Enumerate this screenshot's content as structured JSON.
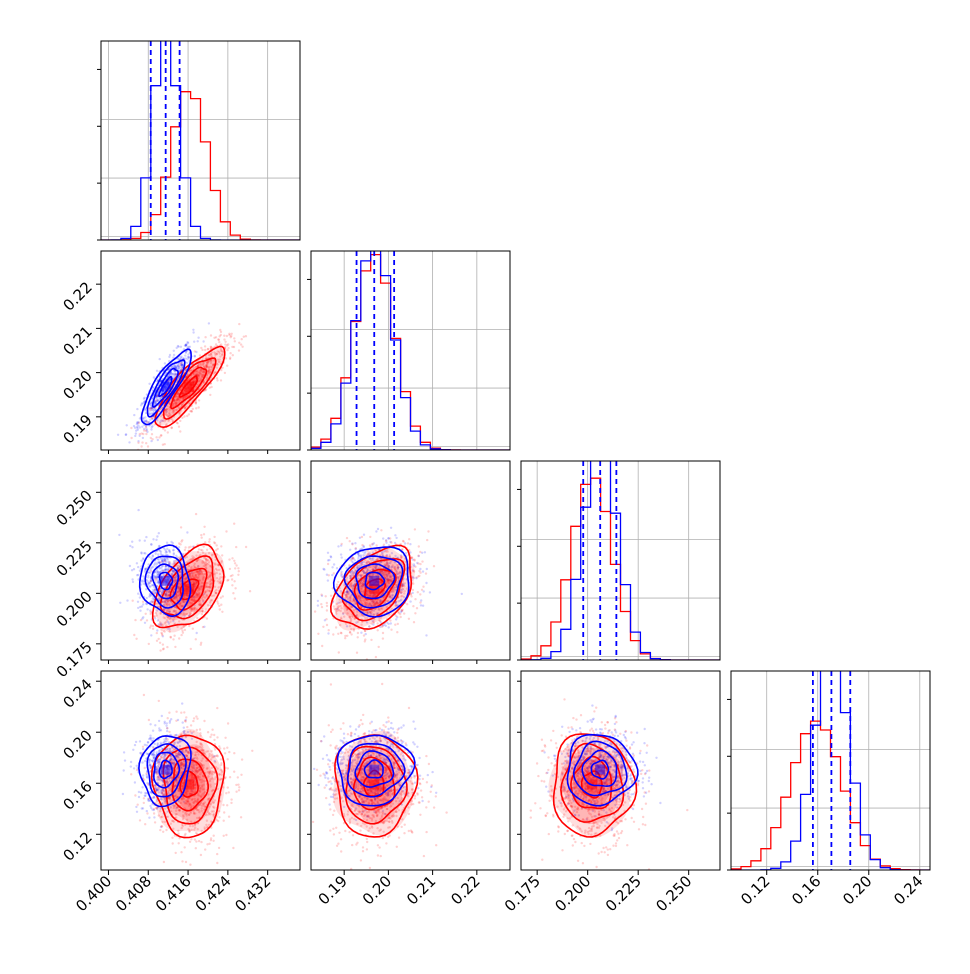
{
  "chart_data": {
    "type": "corner",
    "n_params": 4,
    "colors": {
      "blue": "#0000ff",
      "red": "#ff0000",
      "grid": "#b0b0b0",
      "frame": "#000000"
    },
    "axes": [
      {
        "lim": [
          0.3985,
          0.4385
        ],
        "ticks": [
          0.4,
          0.408,
          0.416,
          0.424,
          0.432
        ],
        "tick_labels": [
          "0.400",
          "0.408",
          "0.416",
          "0.424",
          "0.432"
        ]
      },
      {
        "lim": [
          0.1825,
          0.2275
        ],
        "ticks": [
          0.19,
          0.2,
          0.21,
          0.22
        ],
        "tick_labels": [
          "0.19",
          "0.20",
          "0.21",
          "0.22"
        ]
      },
      {
        "lim": [
          0.167,
          0.2655
        ],
        "ticks": [
          0.175,
          0.2,
          0.225,
          0.25
        ],
        "tick_labels": [
          "0.175",
          "0.200",
          "0.225",
          "0.250"
        ]
      },
      {
        "lim": [
          0.092,
          0.248
        ],
        "ticks": [
          0.12,
          0.16,
          0.2,
          0.24
        ],
        "tick_labels": [
          "0.12",
          "0.16",
          "0.20",
          "0.24"
        ]
      }
    ],
    "blue": {
      "means": [
        0.4115,
        0.1968,
        0.2062,
        0.1707
      ],
      "sds": [
        0.0025,
        0.0042,
        0.0085,
        0.0138
      ],
      "quantiles": [
        [
          0.4085,
          0.4115,
          0.4143
        ],
        [
          0.1928,
          0.1968,
          0.2013
        ],
        [
          0.1978,
          0.2062,
          0.2142
        ],
        [
          0.1562,
          0.1707,
          0.1855
        ]
      ],
      "corr": {
        "1-0": 0.85,
        "2-0": -0.1,
        "2-1": 0.05,
        "3-0": 0.1,
        "3-1": 0.05,
        "3-2": 0.0
      }
    },
    "red": {
      "means": [
        0.4162,
        0.1968,
        0.2022,
        0.159
      ],
      "sds": [
        0.0035,
        0.0045,
        0.01,
        0.02
      ],
      "corr": {
        "1-0": 0.85,
        "2-0": 0.45,
        "2-1": 0.4,
        "3-0": 0.0,
        "3-1": 0.0,
        "3-2": 0.0
      }
    }
  }
}
